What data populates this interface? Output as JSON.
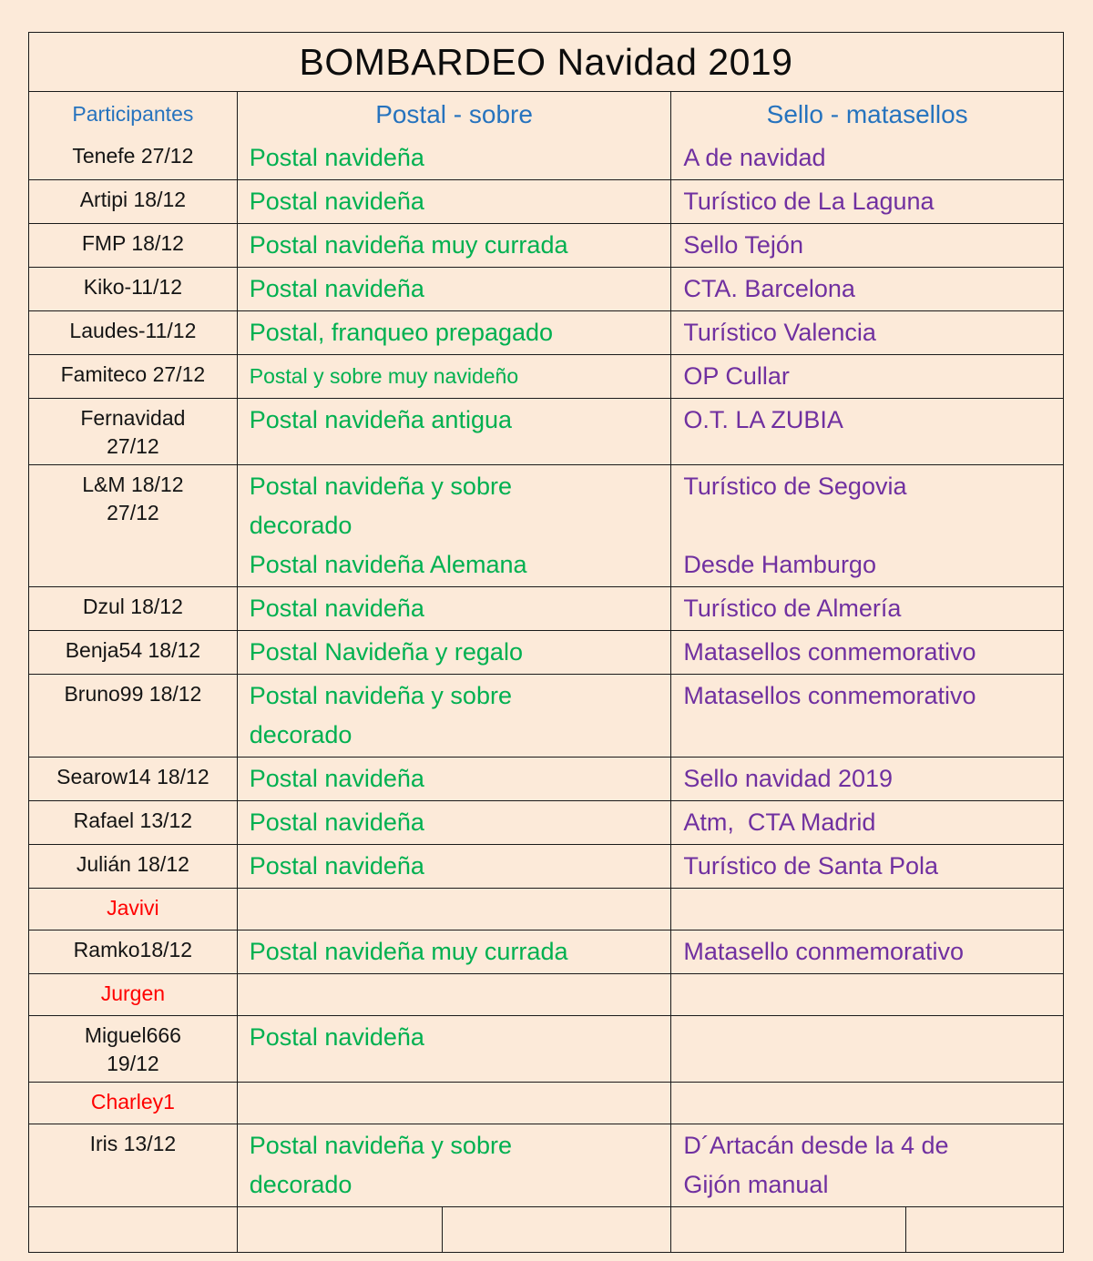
{
  "title": "BOMBARDEO Navidad 2019",
  "columns": {
    "participants": "Participantes",
    "postal": "Postal - sobre",
    "sello": "Sello - matasellos"
  },
  "colors": {
    "background": "#fcead9",
    "border": "#1a1a1a",
    "header_blue": "#2673be",
    "postal_green": "#00b050",
    "sello_purple": "#7030a0",
    "name_red": "#ff0000"
  },
  "rows": [
    {
      "participant": [
        "Tenefe 27/12"
      ],
      "name_color": "black",
      "postal": [
        "Postal navideña"
      ],
      "sello": [
        "A de navidad"
      ]
    },
    {
      "participant": [
        "Artipi 18/12"
      ],
      "name_color": "black",
      "postal": [
        "Postal navideña"
      ],
      "sello": [
        "Turístico de La Laguna"
      ]
    },
    {
      "participant": [
        "FMP 18/12"
      ],
      "name_color": "black",
      "postal": [
        "Postal navideña muy currada"
      ],
      "sello": [
        "Sello Tejón"
      ]
    },
    {
      "participant": [
        "Kiko-11/12"
      ],
      "name_color": "black",
      "postal": [
        "Postal navideña"
      ],
      "sello": [
        "CTA. Barcelona"
      ]
    },
    {
      "participant": [
        "Laudes-11/12"
      ],
      "name_color": "black",
      "postal": [
        "Postal, franqueo prepagado"
      ],
      "sello": [
        "Turístico Valencia"
      ]
    },
    {
      "participant": [
        "Famiteco 27/12"
      ],
      "name_color": "black",
      "postal": [
        "Postal y sobre muy navideño"
      ],
      "postal_small": true,
      "sello": [
        "OP Cullar"
      ]
    },
    {
      "participant": [
        "Fernavidad",
        "27/12"
      ],
      "name_color": "black",
      "postal": [
        "Postal navideña antigua"
      ],
      "sello": [
        "O.T. LA ZUBIA"
      ]
    },
    {
      "participant": [
        "L&M 18/12",
        "27/12"
      ],
      "name_color": "black",
      "postal": [
        "Postal navideña y sobre decorado",
        "Postal navideña Alemana"
      ],
      "sello": [
        "Turístico de Segovia",
        "",
        "Desde Hamburgo"
      ]
    },
    {
      "participant": [
        "Dzul 18/12"
      ],
      "name_color": "black",
      "postal": [
        "Postal navideña"
      ],
      "sello": [
        "Turístico de Almería"
      ]
    },
    {
      "participant": [
        "Benja54 18/12"
      ],
      "name_color": "black",
      "postal": [
        "Postal Navideña y regalo"
      ],
      "sello": [
        "Matasellos conmemorativo"
      ]
    },
    {
      "participant": [
        "Bruno99 18/12"
      ],
      "name_color": "black",
      "postal": [
        "Postal navideña y sobre decorado"
      ],
      "sello": [
        "Matasellos conmemorativo"
      ]
    },
    {
      "participant": [
        "Searow14 18/12"
      ],
      "name_color": "black",
      "postal": [
        "Postal navideña"
      ],
      "sello": [
        "Sello navidad 2019"
      ]
    },
    {
      "participant": [
        "Rafael 13/12"
      ],
      "name_color": "black",
      "postal": [
        "Postal navideña"
      ],
      "sello": [
        "Atm,  CTA Madrid"
      ]
    },
    {
      "participant": [
        "Julián 18/12"
      ],
      "name_color": "black",
      "postal": [
        "Postal navideña"
      ],
      "sello": [
        "Turístico de Santa Pola"
      ]
    },
    {
      "participant": [
        "Javivi"
      ],
      "name_color": "red",
      "postal": [],
      "sello": []
    },
    {
      "participant": [
        "Ramko18/12"
      ],
      "name_color": "black",
      "postal": [
        "Postal navideña muy currada"
      ],
      "sello": [
        "Matasello conmemorativo"
      ]
    },
    {
      "participant": [
        "Jurgen"
      ],
      "name_color": "red",
      "postal": [],
      "sello": []
    },
    {
      "participant": [
        "Miguel666",
        "19/12"
      ],
      "name_color": "black",
      "postal": [
        "Postal navideña"
      ],
      "sello": []
    },
    {
      "participant": [
        "Charley1"
      ],
      "name_color": "red",
      "postal": [],
      "sello": []
    },
    {
      "participant": [
        "Iris 13/12"
      ],
      "name_color": "black",
      "postal": [
        "Postal navideña y sobre decorado"
      ],
      "sello": [
        "D´Artacán desde la 4 de Gijón manual"
      ]
    }
  ]
}
